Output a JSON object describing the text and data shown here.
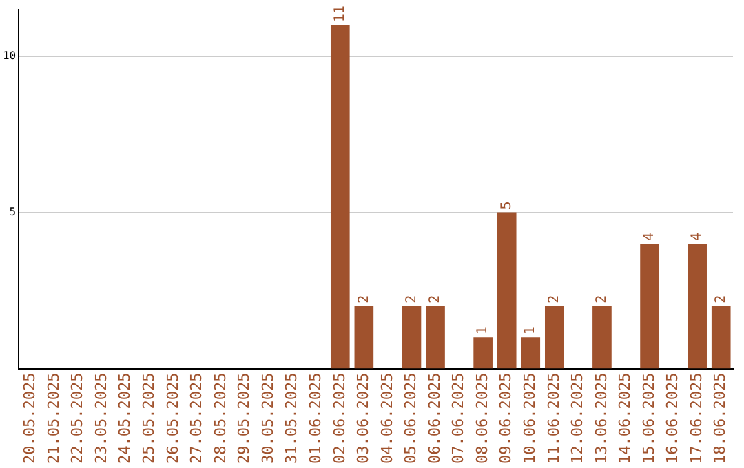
{
  "chart_data": {
    "type": "bar",
    "categories": [
      "20.05.2025",
      "21.05.2025",
      "22.05.2025",
      "23.05.2025",
      "24.05.2025",
      "25.05.2025",
      "26.05.2025",
      "27.05.2025",
      "28.05.2025",
      "29.05.2025",
      "30.05.2025",
      "31.05.2025",
      "01.06.2025",
      "02.06.2025",
      "03.06.2025",
      "04.06.2025",
      "05.06.2025",
      "06.06.2025",
      "07.06.2025",
      "08.06.2025",
      "09.06.2025",
      "10.06.2025",
      "11.06.2025",
      "12.06.2025",
      "13.06.2025",
      "14.06.2025",
      "15.06.2025",
      "16.06.2025",
      "17.06.2025",
      "18.06.2025"
    ],
    "values": [
      0,
      0,
      0,
      0,
      0,
      0,
      0,
      0,
      0,
      0,
      0,
      0,
      0,
      11,
      2,
      0,
      2,
      2,
      0,
      1,
      5,
      1,
      2,
      0,
      2,
      0,
      4,
      0,
      4,
      2
    ],
    "value_labels": [
      null,
      null,
      null,
      null,
      null,
      null,
      null,
      null,
      null,
      null,
      null,
      null,
      null,
      "11",
      "2",
      null,
      "2",
      "2",
      null,
      "1",
      "5",
      "1",
      "2",
      null,
      "2",
      null,
      "4",
      null,
      "4",
      "2"
    ],
    "color": "#a0522d",
    "ylim": [
      0,
      11.5
    ],
    "yticks": [
      5,
      10
    ],
    "grid": "y",
    "legend": false
  }
}
